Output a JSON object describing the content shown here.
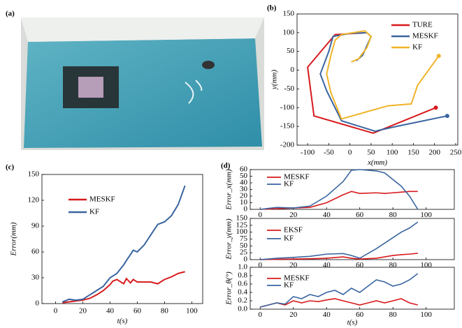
{
  "photo_label": "(a)",
  "chart_data": [
    {
      "type": "line",
      "label": "(b)",
      "xlabel": "x(mm)",
      "ylabel": "y(mm)",
      "xlim": [
        -125,
        255
      ],
      "ylim": [
        -200,
        150
      ],
      "xticks": [
        -100,
        -50,
        0,
        50,
        100,
        150,
        200,
        250
      ],
      "yticks": [
        -200,
        -150,
        -100,
        -50,
        0,
        50,
        100,
        150
      ],
      "legend": "upper right",
      "end_marker": true,
      "series": [
        {
          "name": "TURE",
          "color": "#d7191c",
          "x": [
            40,
            -35,
            -100,
            -85,
            55,
            203
          ],
          "values": [
            100,
            95,
            8,
            -122,
            -168,
            -100
          ]
        },
        {
          "name": "MESKF",
          "color": "#3a65a0",
          "x": [
            15,
            30,
            50,
            40,
            0,
            -40,
            -50,
            -70,
            -55,
            -20,
            60,
            70,
            110,
            230
          ],
          "values": [
            25,
            40,
            90,
            100,
            98,
            90,
            50,
            -10,
            -55,
            -135,
            -163,
            -160,
            -150,
            -122
          ]
        },
        {
          "name": "KF",
          "color": "#f0b429",
          "x": [
            3,
            20,
            40,
            50,
            35,
            -20,
            -35,
            -45,
            -55,
            -45,
            -20,
            90,
            145,
            160,
            210
          ],
          "values": [
            22,
            30,
            60,
            90,
            105,
            95,
            80,
            40,
            -10,
            -60,
            -130,
            -95,
            -90,
            -40,
            38
          ]
        }
      ]
    },
    {
      "type": "line",
      "label": "(c)",
      "xlabel": "t(s)",
      "ylabel": "Error(mm)",
      "xlim": [
        -10,
        108
      ],
      "ylim": [
        0,
        150
      ],
      "xticks": [
        0,
        20,
        40,
        60,
        80,
        100
      ],
      "yticks": [
        0,
        30,
        60,
        90,
        120,
        150
      ],
      "legend": "upper left",
      "x": [
        5,
        10,
        15,
        20,
        25,
        30,
        35,
        40,
        42,
        45,
        50,
        52,
        55,
        57,
        60,
        65,
        70,
        75,
        80,
        85,
        90,
        95
      ],
      "series": [
        {
          "name": "MESKF",
          "color": "#d7191c",
          "values": [
            1,
            2,
            3,
            4,
            6,
            10,
            15,
            22,
            26,
            28,
            23,
            29,
            24,
            28,
            25,
            25,
            25,
            23,
            28,
            31,
            35,
            37
          ]
        },
        {
          "name": "KF",
          "color": "#3a65a0",
          "values": [
            2,
            5,
            4,
            5,
            10,
            15,
            20,
            30,
            32,
            35,
            45,
            50,
            57,
            62,
            60,
            68,
            80,
            92,
            95,
            102,
            115,
            137
          ]
        }
      ]
    },
    {
      "type": "line",
      "label": "(d)",
      "ylabel": "Error_x(mm)",
      "xlim": [
        -6,
        117
      ],
      "ylim": [
        0,
        60
      ],
      "xticks": [
        0,
        20,
        40,
        60,
        80,
        100
      ],
      "yticks": [
        0,
        10,
        20,
        30,
        40,
        50,
        60
      ],
      "legend": "upper left",
      "x": [
        0,
        10,
        20,
        30,
        40,
        50,
        55,
        60,
        70,
        75,
        80,
        85,
        90,
        95
      ],
      "series": [
        {
          "name": "MESKF",
          "color": "#d7191c",
          "values": [
            0,
            1,
            2,
            3,
            10,
            22,
            27,
            24,
            25,
            24,
            25,
            26,
            27,
            27
          ]
        },
        {
          "name": "KF",
          "color": "#3a65a0",
          "values": [
            0,
            3,
            2,
            5,
            20,
            42,
            59,
            60,
            58,
            55,
            45,
            35,
            20,
            0
          ]
        }
      ]
    },
    {
      "type": "line",
      "ylabel": "Error_y(mm)",
      "xlim": [
        -6,
        117
      ],
      "ylim": [
        0,
        150
      ],
      "xticks": [
        0,
        20,
        40,
        60,
        80,
        100
      ],
      "yticks": [
        0,
        25,
        50,
        75,
        100,
        125,
        150
      ],
      "legend": "upper left",
      "x": [
        0,
        10,
        20,
        30,
        40,
        50,
        55,
        60,
        70,
        75,
        80,
        85,
        90,
        95
      ],
      "series": [
        {
          "name": "EKSF",
          "color": "#d7191c",
          "values": [
            0,
            1,
            2,
            3,
            5,
            10,
            5,
            2,
            5,
            10,
            15,
            18,
            20,
            23
          ]
        },
        {
          "name": "KF",
          "color": "#3a65a0",
          "values": [
            0,
            5,
            8,
            12,
            20,
            22,
            15,
            5,
            40,
            60,
            80,
            100,
            115,
            137
          ]
        }
      ]
    },
    {
      "type": "line",
      "xlabel": "t(s)",
      "ylabel": "Error_θ(°)",
      "xlim": [
        -6,
        117
      ],
      "ylim": [
        0,
        1
      ],
      "xticks": [
        0,
        20,
        40,
        60,
        80,
        100
      ],
      "yticks": [
        {
          "value": 0,
          "label": "0.0"
        },
        {
          "value": 0.2,
          "label": "0.2"
        },
        {
          "value": 0.4,
          "label": "0.4"
        },
        {
          "value": 0.6,
          "label": "0.6"
        },
        {
          "value": 0.8,
          "label": "0.8"
        },
        {
          "value": 1,
          "label": "1.0"
        }
      ],
      "legend": "upper left",
      "x": [
        0,
        5,
        10,
        15,
        20,
        25,
        30,
        35,
        40,
        45,
        50,
        55,
        60,
        65,
        70,
        75,
        80,
        85,
        90,
        95
      ],
      "series": [
        {
          "name": "MESKF",
          "color": "#d7191c",
          "values": [
            0.05,
            0.1,
            0.15,
            0.1,
            0.2,
            0.15,
            0.2,
            0.18,
            0.22,
            0.25,
            0.2,
            0.15,
            0.1,
            0.15,
            0.2,
            0.15,
            0.2,
            0.25,
            0.15,
            0.1
          ]
        },
        {
          "name": "KF",
          "color": "#3a65a0",
          "values": [
            0.05,
            0.1,
            0.15,
            0.12,
            0.3,
            0.25,
            0.35,
            0.3,
            0.4,
            0.45,
            0.35,
            0.5,
            0.4,
            0.55,
            0.7,
            0.65,
            0.55,
            0.6,
            0.7,
            0.85
          ]
        }
      ]
    }
  ]
}
